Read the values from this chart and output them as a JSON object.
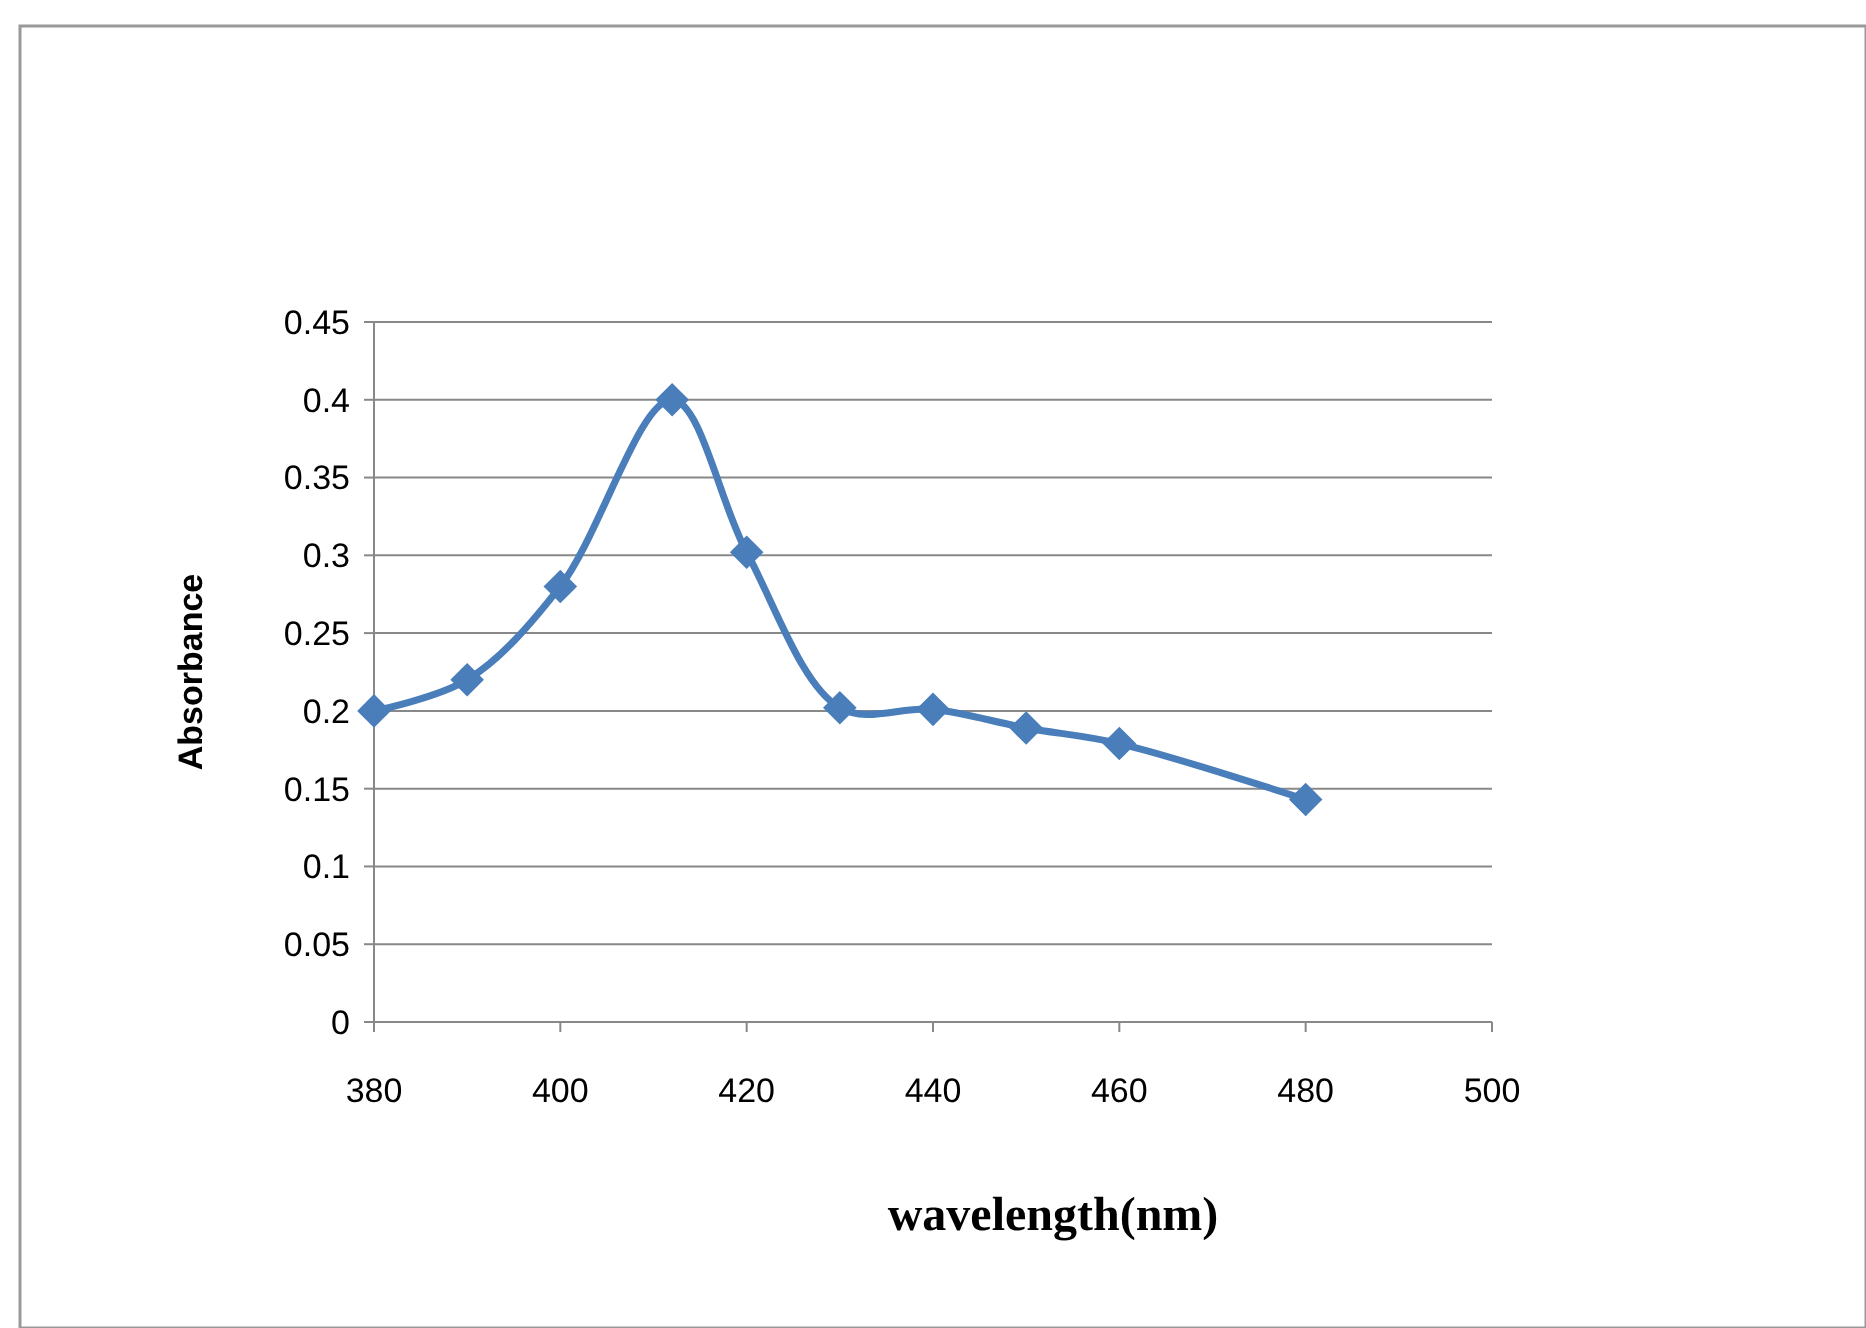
{
  "chart_data": {
    "type": "line",
    "xlabel": "wavelength(nm)",
    "ylabel": "Absorbance",
    "x": [
      380,
      390,
      400,
      412,
      420,
      430,
      440,
      450,
      460,
      480
    ],
    "series": [
      {
        "color": "#4a7ebb",
        "values": [
          0.2,
          0.22,
          0.28,
          0.4,
          0.302,
          0.202,
          0.201,
          0.189,
          0.179,
          0.143
        ]
      }
    ],
    "xlim": [
      380,
      500
    ],
    "xticks": [
      380,
      400,
      420,
      440,
      460,
      480,
      500
    ],
    "ylim": [
      0,
      0.45
    ],
    "yticks": [
      0,
      0.05,
      0.1,
      0.15,
      0.2,
      0.25,
      0.3,
      0.35,
      0.4,
      0.45
    ],
    "grid": "y",
    "marker": "diamond",
    "line_style": "solid"
  }
}
